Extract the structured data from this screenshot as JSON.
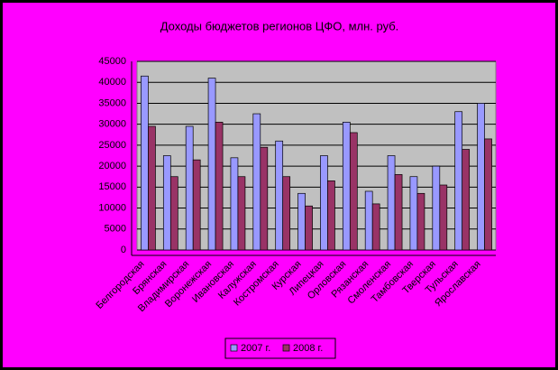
{
  "chart_data": {
    "type": "bar",
    "title": "Доходы бюджетов регионов ЦФО, млн. руб.",
    "categories": [
      "Белгородская",
      "Брянская",
      "Владимирская",
      "Воронежская",
      "Ивановская",
      "Калужская",
      "Костромская",
      "Курская",
      "Липецкая",
      "Орловская",
      "Рязанская",
      "Смоленская",
      "Тамбовская",
      "Тверская",
      "Тульская",
      "Ярославская"
    ],
    "series": [
      {
        "name": "2007 г.",
        "color": "#9999ff",
        "values": [
          41500,
          22500,
          29500,
          41000,
          22000,
          32500,
          26000,
          13500,
          22500,
          30500,
          14000,
          22500,
          17500,
          20000,
          33000,
          35000
        ]
      },
      {
        "name": "2008 г.",
        "color": "#993366",
        "values": [
          29500,
          17500,
          21500,
          30500,
          17500,
          24500,
          17500,
          10500,
          16500,
          28000,
          11000,
          18000,
          13500,
          15500,
          24000,
          26500
        ]
      }
    ],
    "ylim": [
      0,
      45000
    ],
    "yticks": [
      0,
      5000,
      10000,
      15000,
      20000,
      25000,
      30000,
      35000,
      40000,
      45000
    ],
    "grid": true,
    "legend": "bottom"
  }
}
